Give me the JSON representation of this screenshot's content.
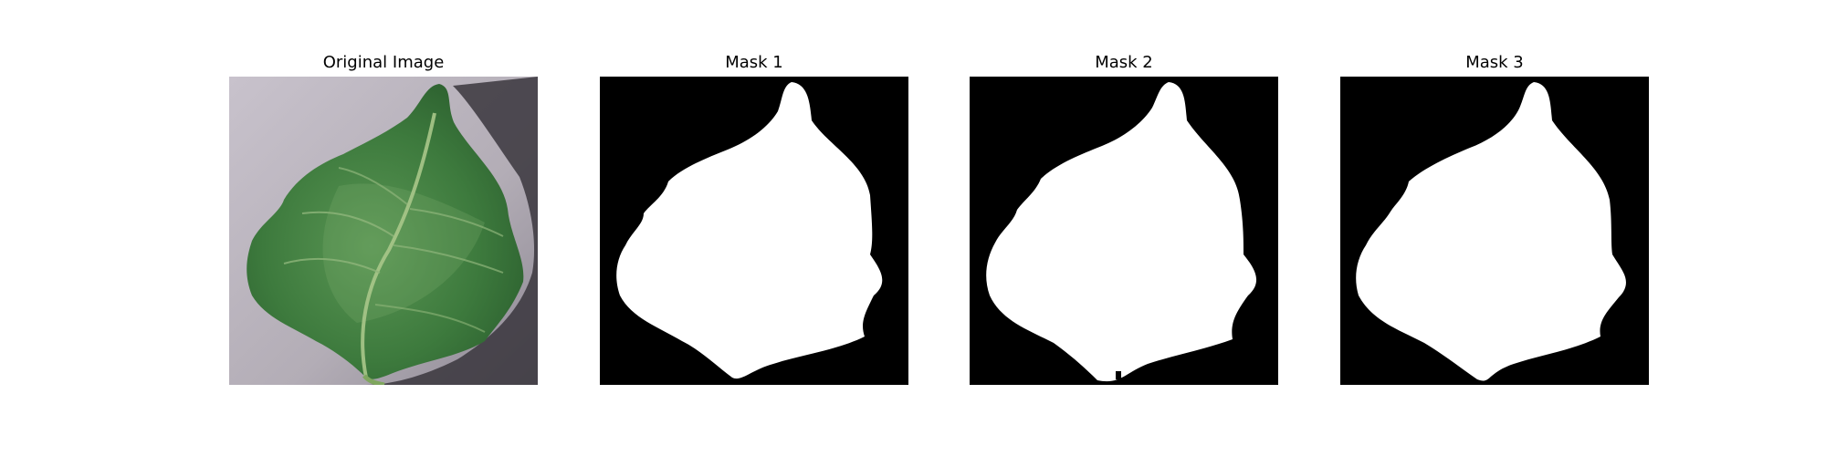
{
  "figure": {
    "panels": [
      {
        "title": "Original Image",
        "kind": "photo",
        "subject": "leaf-on-gray-background"
      },
      {
        "title": "Mask 1",
        "kind": "mask"
      },
      {
        "title": "Mask 2",
        "kind": "mask"
      },
      {
        "title": "Mask 3",
        "kind": "mask"
      }
    ]
  },
  "colors": {
    "background_photo": "#b7b0b8",
    "leaf_dark": "#2f6a33",
    "leaf_mid": "#4b8a48",
    "vein": "#a8c78a",
    "mask_bg": "#000000",
    "mask_fg": "#ffffff"
  }
}
